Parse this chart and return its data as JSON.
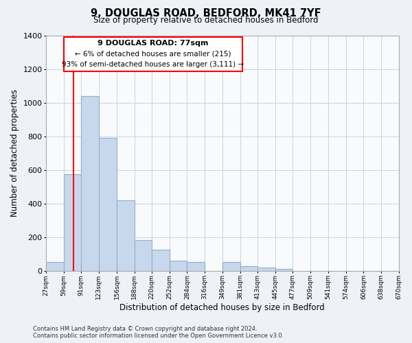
{
  "title": "9, DOUGLAS ROAD, BEDFORD, MK41 7YF",
  "subtitle": "Size of property relative to detached houses in Bedford",
  "xlabel": "Distribution of detached houses by size in Bedford",
  "ylabel": "Number of detached properties",
  "bar_color": "#c8d8ec",
  "bar_edge_color": "#90b0cc",
  "vline_color": "red",
  "vline_x": 77,
  "annotation_title": "9 DOUGLAS ROAD: 77sqm",
  "annotation_line1": "← 6% of detached houses are smaller (215)",
  "annotation_line2": "93% of semi-detached houses are larger (3,111) →",
  "bins": [
    27,
    59,
    91,
    123,
    156,
    188,
    220,
    252,
    284,
    316,
    349,
    381,
    413,
    445,
    477,
    509,
    541,
    574,
    606,
    638,
    670
  ],
  "counts": [
    50,
    575,
    1040,
    790,
    420,
    180,
    125,
    60,
    50,
    0,
    50,
    25,
    20,
    10,
    0,
    0,
    0,
    0,
    0,
    0
  ],
  "ylim": [
    0,
    1400
  ],
  "yticks": [
    0,
    200,
    400,
    600,
    800,
    1000,
    1200,
    1400
  ],
  "footer_line1": "Contains HM Land Registry data © Crown copyright and database right 2024.",
  "footer_line2": "Contains public sector information licensed under the Open Government Licence v3.0.",
  "bg_color": "#eef2f7",
  "plot_bg_color": "#f8fafc",
  "grid_color": "#c8d4e0"
}
